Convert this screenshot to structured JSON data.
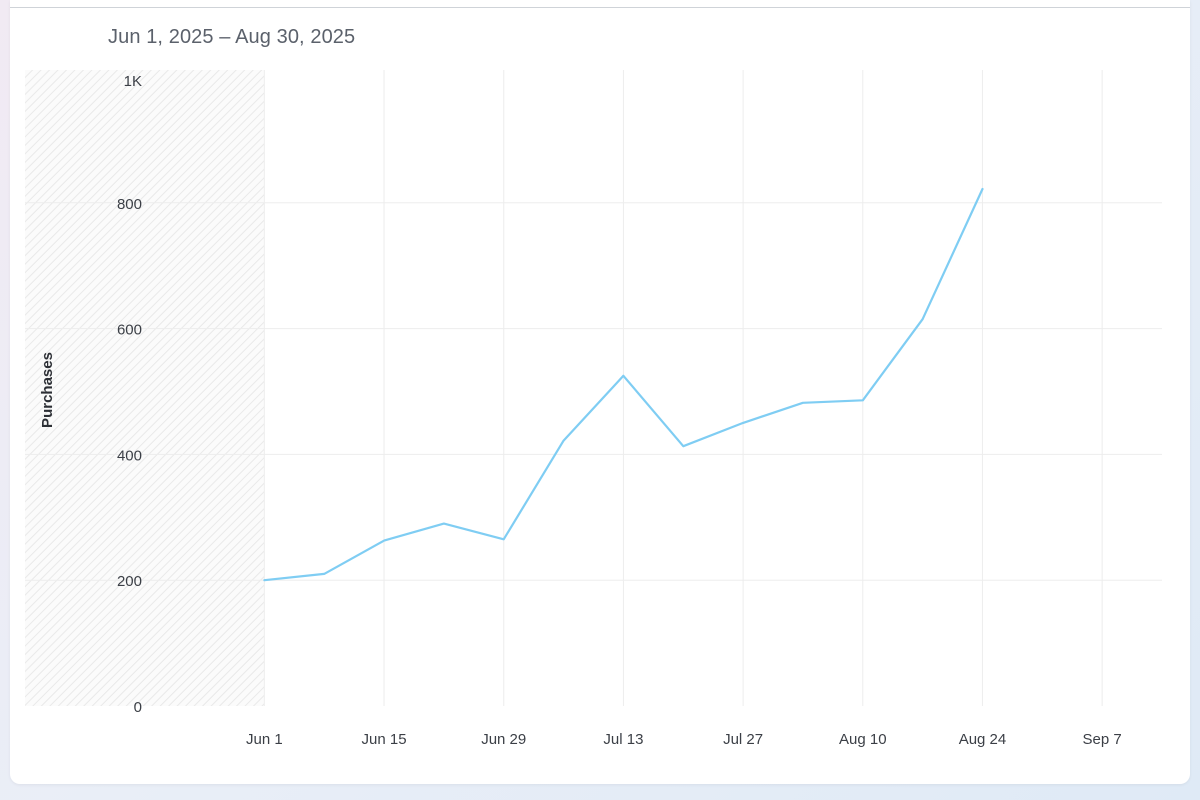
{
  "header": {
    "date_range": "Jun 1, 2025 – Aug 30, 2025"
  },
  "chart_data": {
    "type": "line",
    "title": "",
    "xlabel": "",
    "ylabel": "Purchases",
    "ylim": [
      0,
      1000
    ],
    "y_ticks": [
      {
        "value": 0,
        "label": "0"
      },
      {
        "value": 200,
        "label": "200"
      },
      {
        "value": 400,
        "label": "400"
      },
      {
        "value": 600,
        "label": "600"
      },
      {
        "value": 800,
        "label": "800"
      },
      {
        "value": 1000,
        "label": "1K"
      }
    ],
    "x_ticks": [
      "Jun 1",
      "Jun 15",
      "Jun 29",
      "Jul 13",
      "Jul 27",
      "Aug 10",
      "Aug 24",
      "Sep 7"
    ],
    "x_tick_dates": [
      "2025-06-01",
      "2025-06-15",
      "2025-06-29",
      "2025-07-13",
      "2025-07-27",
      "2025-08-10",
      "2025-08-24",
      "2025-09-07"
    ],
    "xlim": [
      "2025-05-04",
      "2025-09-14"
    ],
    "grid": true,
    "series_color": "#7fcdf3",
    "series": [
      {
        "x": [
          "2025-06-01",
          "2025-06-08",
          "2025-06-15",
          "2025-06-22",
          "2025-06-29",
          "2025-07-06",
          "2025-07-13",
          "2025-07-20",
          "2025-07-27",
          "2025-08-03",
          "2025-08-10",
          "2025-08-17",
          "2025-08-24"
        ],
        "values": [
          200,
          210,
          263,
          290,
          265,
          422,
          525,
          413,
          450,
          482,
          486,
          615,
          822
        ]
      }
    ]
  }
}
